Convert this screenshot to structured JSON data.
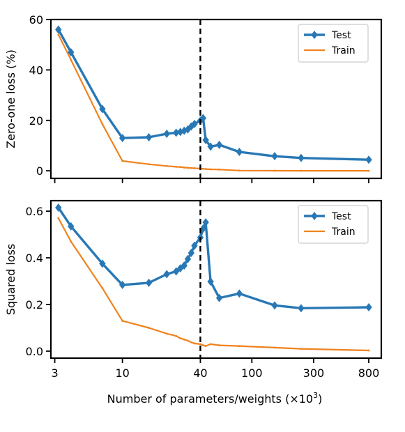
{
  "chart_data": [
    {
      "type": "line",
      "title": "",
      "xlabel": "",
      "ylabel": "Zero-one loss (%)",
      "xscale": "log",
      "xlim": [
        2.8,
        1000
      ],
      "ylim": [
        -3,
        60
      ],
      "yticks": [
        0,
        20,
        40,
        60
      ],
      "xticks": [
        3,
        10,
        40,
        100,
        300,
        800
      ],
      "vline_x": 40,
      "legend_position": "top-right",
      "series": [
        {
          "name": "Test",
          "color": "#2878b5",
          "marker": "diamond",
          "x": [
            3.2,
            4,
            7,
            10,
            16,
            22,
            26,
            28,
            30,
            32,
            34,
            36,
            40,
            42,
            44,
            48,
            56,
            80,
            150,
            240,
            800
          ],
          "y": [
            56,
            47,
            24.5,
            13,
            13.3,
            14.7,
            15.1,
            15.4,
            15.9,
            16.4,
            17.6,
            18.6,
            19.9,
            20.9,
            12.2,
            9.6,
            10.3,
            7.5,
            5.8,
            5.1,
            4.4
          ]
        },
        {
          "name": "Train",
          "color": "#f0821e",
          "marker": "none",
          "x": [
            3.2,
            4,
            7,
            10,
            16,
            22,
            26,
            28,
            30,
            32,
            34,
            36,
            40,
            42,
            44,
            48,
            56,
            80,
            150,
            240,
            800
          ],
          "y": [
            54,
            44,
            18.5,
            3.9,
            2.6,
            1.9,
            1.6,
            1.5,
            1.3,
            1.2,
            1.1,
            1.0,
            0.9,
            0.8,
            0.7,
            0.6,
            0.5,
            0.1,
            0.05,
            0.02,
            0.0
          ]
        }
      ]
    },
    {
      "type": "line",
      "title": "",
      "xlabel": "Number of parameters/weights (×10³)",
      "ylabel": "Squared loss",
      "xscale": "log",
      "xlim": [
        2.8,
        1000
      ],
      "ylim": [
        -0.03,
        0.645
      ],
      "yticks": [
        0.0,
        0.2,
        0.4,
        0.6
      ],
      "xticks": [
        3,
        10,
        40,
        100,
        300,
        800
      ],
      "vline_x": 40,
      "legend_position": "top-right",
      "series": [
        {
          "name": "Test",
          "color": "#2878b5",
          "marker": "diamond",
          "x": [
            3.2,
            4,
            7,
            10,
            16,
            22,
            26,
            28,
            30,
            32,
            34,
            36,
            40,
            42,
            44,
            48,
            56,
            80,
            150,
            240,
            800
          ],
          "y": [
            0.615,
            0.535,
            0.375,
            0.284,
            0.293,
            0.33,
            0.342,
            0.355,
            0.367,
            0.395,
            0.421,
            0.452,
            0.487,
            0.525,
            0.552,
            0.298,
            0.228,
            0.247,
            0.196,
            0.184,
            0.188
          ]
        },
        {
          "name": "Train",
          "color": "#f0821e",
          "marker": "none",
          "x": [
            3.2,
            4,
            7,
            10,
            16,
            22,
            26,
            28,
            30,
            32,
            34,
            36,
            40,
            42,
            44,
            48,
            56,
            80,
            150,
            240,
            800
          ],
          "y": [
            0.57,
            0.47,
            0.27,
            0.13,
            0.1,
            0.075,
            0.065,
            0.055,
            0.05,
            0.045,
            0.038,
            0.033,
            0.03,
            0.025,
            0.022,
            0.03,
            0.025,
            0.022,
            0.015,
            0.01,
            0.003
          ]
        }
      ]
    }
  ],
  "x_tick_labels": [
    "3",
    "10",
    "40",
    "100",
    "300",
    "800"
  ],
  "xlabel_main": "Number of parameters/weights (×10",
  "xlabel_exponent": "3",
  "xlabel_close": ")"
}
